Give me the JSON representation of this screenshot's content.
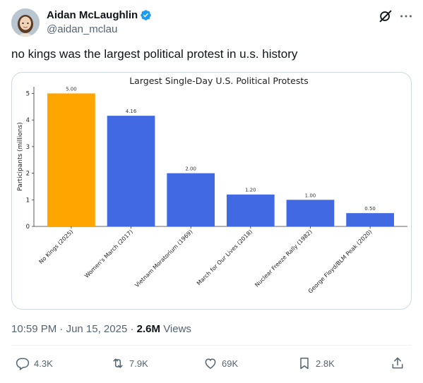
{
  "tweet": {
    "author_name": "Aidan McLaughlin",
    "author_handle": "@aidan_mclau",
    "text": "no kings was the largest political protest in u.s. history",
    "time": "10:59 PM",
    "date": "Jun 15, 2025",
    "views_count": "2.6M",
    "views_label": "Views",
    "icons": {
      "verified": "verified-badge-icon",
      "grok": "grok-icon",
      "more": "more-options-icon"
    }
  },
  "actions": {
    "replies": "4.3K",
    "reposts": "7.9K",
    "likes": "69K",
    "bookmarks": "2.8K"
  },
  "colors": {
    "accent": "#1d9bf0",
    "highlight_bar": "#ffa500",
    "bar": "#4169e1"
  },
  "chart_data": {
    "type": "bar",
    "title": "Largest Single-Day U.S. Political Protests",
    "ylabel": "Participants (millions)",
    "xlabel": "",
    "ylim": [
      0,
      5.25
    ],
    "yticks": [
      0,
      1,
      2,
      3,
      4,
      5
    ],
    "categories": [
      "No Kings (2025)",
      "Women's March (2017)",
      "Vietnam Moratorium (1969)",
      "March for Our Lives (2018)",
      "Nuclear Freeze Rally (1982)",
      "George Floyd/BLM Peak (2020)"
    ],
    "values": [
      5.0,
      4.16,
      2.0,
      1.2,
      1.0,
      0.5
    ],
    "labels": [
      "5.00",
      "4.16",
      "2.00",
      "1.20",
      "1.00",
      "0.50"
    ],
    "bar_colors": [
      "#ffa500",
      "#4169e1",
      "#4169e1",
      "#4169e1",
      "#4169e1",
      "#4169e1"
    ],
    "grid": false
  }
}
